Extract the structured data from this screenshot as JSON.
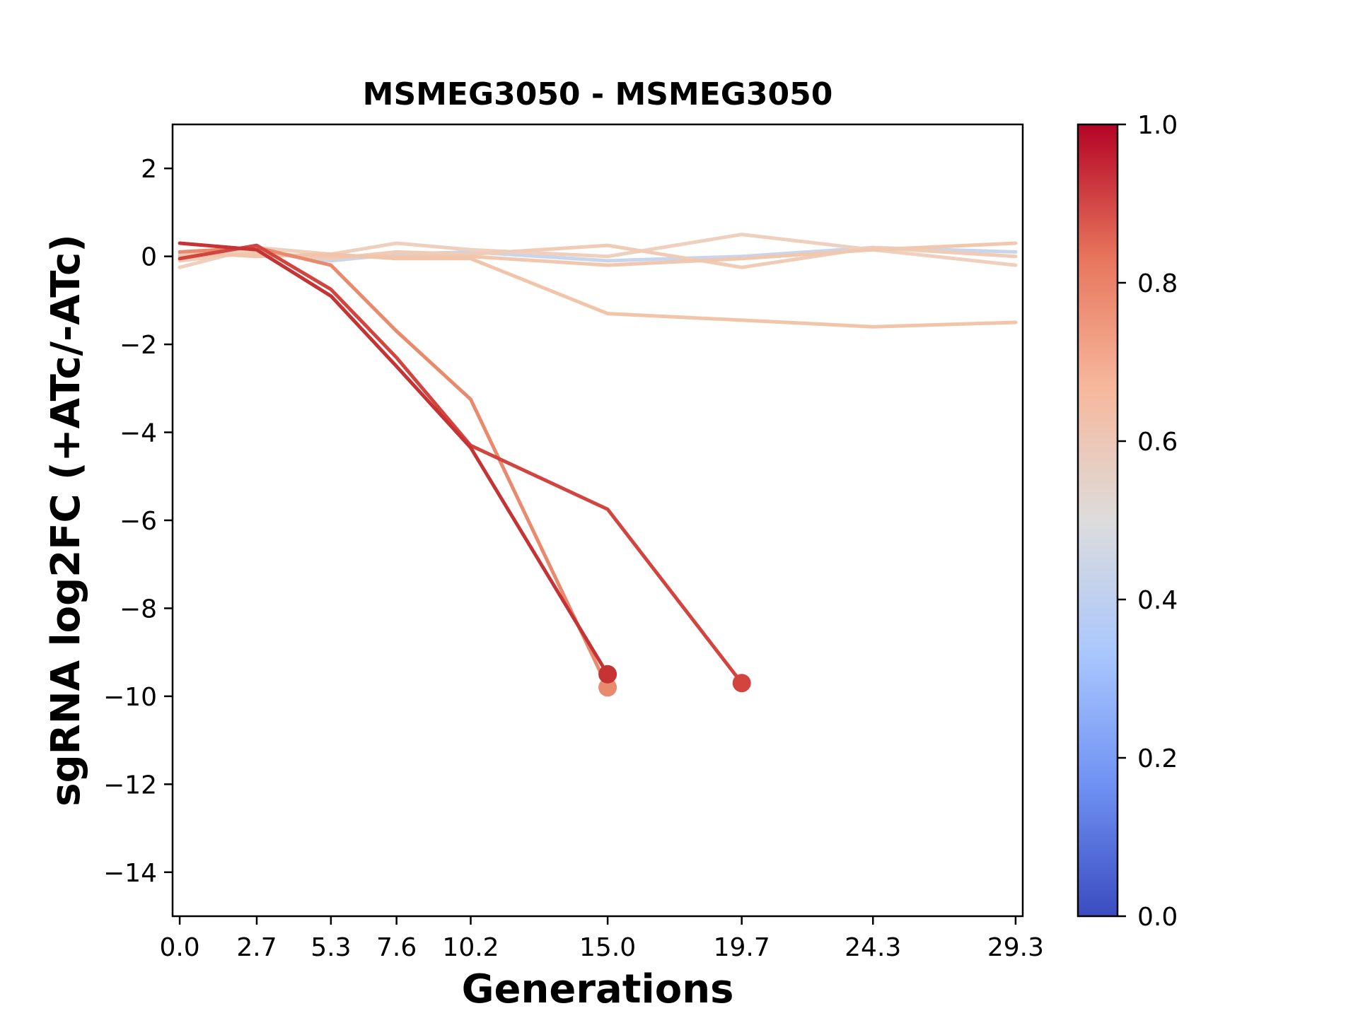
{
  "chart_data": {
    "type": "line",
    "title": "MSMEG3050 - MSMEG3050",
    "xlabel": "Generations",
    "ylabel": "sgRNA log2FC (+ATc/-ATc)",
    "xlim": [
      -0.25,
      29.55
    ],
    "ylim": [
      -15,
      3
    ],
    "x_ticks": [
      0.0,
      2.7,
      5.3,
      7.6,
      10.2,
      15.0,
      19.7,
      24.3,
      29.3
    ],
    "x_tick_labels": [
      "0.0",
      "2.7",
      "5.3",
      "7.6",
      "10.2",
      "15.0",
      "19.7",
      "24.3",
      "29.3"
    ],
    "y_ticks": [
      2,
      0,
      -2,
      -4,
      -6,
      -8,
      -10,
      -12,
      -14
    ],
    "y_tick_labels": [
      "2",
      "0",
      "−2",
      "−4",
      "−6",
      "−8",
      "−10",
      "−12",
      "−14"
    ],
    "grid": false,
    "colorbar": {
      "colormap": "coolwarm",
      "range": [
        0.0,
        1.0
      ],
      "ticks": [
        0.0,
        0.2,
        0.4,
        0.6,
        0.8,
        1.0
      ],
      "tick_labels": [
        "0.0",
        "0.2",
        "0.4",
        "0.6",
        "0.8",
        "1.0"
      ],
      "stops": [
        "#3b4cc0",
        "#6f92f3",
        "#aac7fd",
        "#dddcdc",
        "#f7b89c",
        "#e7745b",
        "#b40426"
      ]
    },
    "series": [
      {
        "color": "#c8d5ec",
        "x": [
          0.0,
          2.7,
          5.3,
          7.6,
          10.2,
          15.0,
          19.7,
          24.3,
          29.3
        ],
        "y": [
          0.05,
          0.1,
          -0.1,
          0.05,
          0.1,
          -0.1,
          0.0,
          0.2,
          0.1
        ]
      },
      {
        "color": "#efcfbd",
        "x": [
          0.0,
          2.7,
          5.3,
          7.6,
          10.2,
          15.0,
          19.7,
          24.3,
          29.3
        ],
        "y": [
          -0.25,
          0.2,
          0.05,
          0.3,
          0.15,
          0.0,
          0.5,
          0.15,
          -0.2
        ]
      },
      {
        "color": "#f0cbb5",
        "x": [
          0.0,
          2.7,
          5.3,
          7.6,
          10.2,
          15.0,
          19.7,
          24.3,
          29.3
        ],
        "y": [
          -0.1,
          0.1,
          -0.05,
          0.1,
          0.05,
          0.25,
          -0.25,
          0.2,
          0.0
        ]
      },
      {
        "color": "#f1c7ae",
        "x": [
          0.0,
          2.7,
          5.3,
          7.6,
          10.2,
          15.0,
          19.7,
          24.3,
          29.3
        ],
        "y": [
          0.0,
          0.05,
          0.0,
          0.0,
          0.0,
          -0.2,
          -0.05,
          0.15,
          0.3
        ]
      },
      {
        "color": "#f2c4aa",
        "x": [
          0.0,
          2.7,
          5.3,
          7.6,
          10.2,
          15.0,
          19.7,
          24.3,
          29.3
        ],
        "y": [
          0.1,
          0.0,
          0.05,
          -0.05,
          -0.05,
          -1.3,
          -1.45,
          -1.6,
          -1.5
        ]
      },
      {
        "color": "#e98a6e",
        "x": [
          0.0,
          2.7,
          5.3,
          7.6,
          10.2,
          15.0
        ],
        "y": [
          0.1,
          0.2,
          -0.2,
          -1.7,
          -3.25,
          -9.8
        ],
        "end_marker": true
      },
      {
        "color": "#d2443d",
        "x": [
          0.0,
          2.7,
          5.3,
          7.6,
          10.2,
          15.0,
          19.7
        ],
        "y": [
          -0.05,
          0.25,
          -0.75,
          -2.3,
          -4.3,
          -5.75,
          -9.7
        ],
        "end_marker": true
      },
      {
        "color": "#c53334",
        "x": [
          0.0,
          2.7,
          5.3,
          7.6,
          10.2,
          15.0
        ],
        "y": [
          0.3,
          0.15,
          -0.9,
          -2.5,
          -4.35,
          -9.5
        ],
        "end_marker": true
      }
    ]
  }
}
